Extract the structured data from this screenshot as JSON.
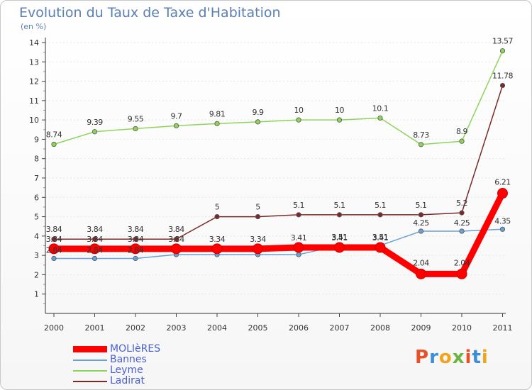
{
  "title": "Evolution du Taux de Taxe d'Habitation",
  "subtitle": "(en %)",
  "logo": {
    "text": "Proxiti",
    "colors": [
      "#e8502a",
      "#3b8fd6",
      "#f2a51a",
      "#6cb33f",
      "#e8502a",
      "#3b8fd6",
      "#f2a51a"
    ]
  },
  "chart_data": {
    "type": "line",
    "categories": [
      "2000",
      "2001",
      "2002",
      "2003",
      "2004",
      "2005",
      "2006",
      "2007",
      "2008",
      "2009",
      "2010",
      "2011"
    ],
    "ylim": [
      0,
      14
    ],
    "yticks": [
      "1",
      "2",
      "3",
      "4",
      "5",
      "6",
      "7",
      "8",
      "9",
      "10",
      "11",
      "12",
      "13",
      "14"
    ],
    "series": [
      {
        "name": "MOLIèRES",
        "color": "#ff0000",
        "values": [
          3.34,
          3.34,
          3.34,
          3.34,
          3.34,
          3.34,
          3.41,
          3.41,
          3.41,
          2.04,
          2.04,
          6.21
        ],
        "labels": [
          "3.34",
          "3.34",
          "3.34",
          "3.34",
          "3.34",
          "3.34",
          "3.41",
          "3.41",
          "3.41",
          "2.04",
          "2.04",
          "6.21"
        ]
      },
      {
        "name": "Bannes",
        "color": "#6aa0d6",
        "values": [
          2.84,
          2.84,
          2.84,
          3.04,
          3.04,
          3.04,
          3.04,
          3.51,
          3.51,
          4.25,
          4.25,
          4.35
        ],
        "labels": [
          "2.84",
          "2.84",
          "2.84",
          "",
          "",
          "",
          "",
          "3.51",
          "3.51",
          "4.25",
          "4.25",
          "4.35"
        ]
      },
      {
        "name": "Leyme",
        "color": "#8fd45a",
        "values": [
          8.74,
          9.39,
          9.55,
          9.7,
          9.81,
          9.9,
          10,
          10,
          10.1,
          8.73,
          8.9,
          13.57
        ],
        "labels": [
          "8.74",
          "9.39",
          "9.55",
          "9.7",
          "9.81",
          "9.9",
          "10",
          "10",
          "10.1",
          "8.73",
          "8.9",
          "13.57"
        ]
      },
      {
        "name": "Ladirat",
        "color": "#7b2a2a",
        "values": [
          3.84,
          3.84,
          3.84,
          3.84,
          5,
          5,
          5.1,
          5.1,
          5.1,
          5.1,
          5.2,
          11.78
        ],
        "labels": [
          "3.84",
          "3.84",
          "3.84",
          "3.84",
          "5",
          "5",
          "5.1",
          "5.1",
          "5.1",
          "5.1",
          "5.2",
          "11.78"
        ]
      }
    ]
  }
}
